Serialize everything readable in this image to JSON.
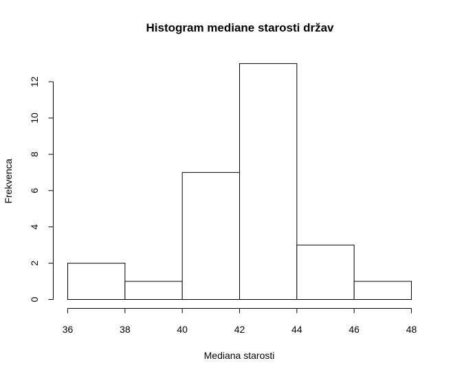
{
  "chart_data": {
    "type": "bar",
    "title": "Histogram mediane starosti držav",
    "xlabel": "Mediana starosti",
    "ylabel": "Frekvenca",
    "bins": [
      {
        "start": 36,
        "end": 38,
        "count": 2
      },
      {
        "start": 38,
        "end": 40,
        "count": 1
      },
      {
        "start": 40,
        "end": 42,
        "count": 7
      },
      {
        "start": 42,
        "end": 44,
        "count": 13
      },
      {
        "start": 44,
        "end": 46,
        "count": 3
      },
      {
        "start": 46,
        "end": 48,
        "count": 1
      }
    ],
    "x_ticks": [
      36,
      38,
      40,
      42,
      44,
      46,
      48
    ],
    "y_ticks": [
      0,
      2,
      4,
      6,
      8,
      10,
      12
    ],
    "xlim": [
      36,
      48
    ],
    "ylim": [
      0,
      13
    ],
    "grid": false,
    "colors": {
      "bar_fill": "#ffffff",
      "bar_stroke": "#000000"
    }
  }
}
